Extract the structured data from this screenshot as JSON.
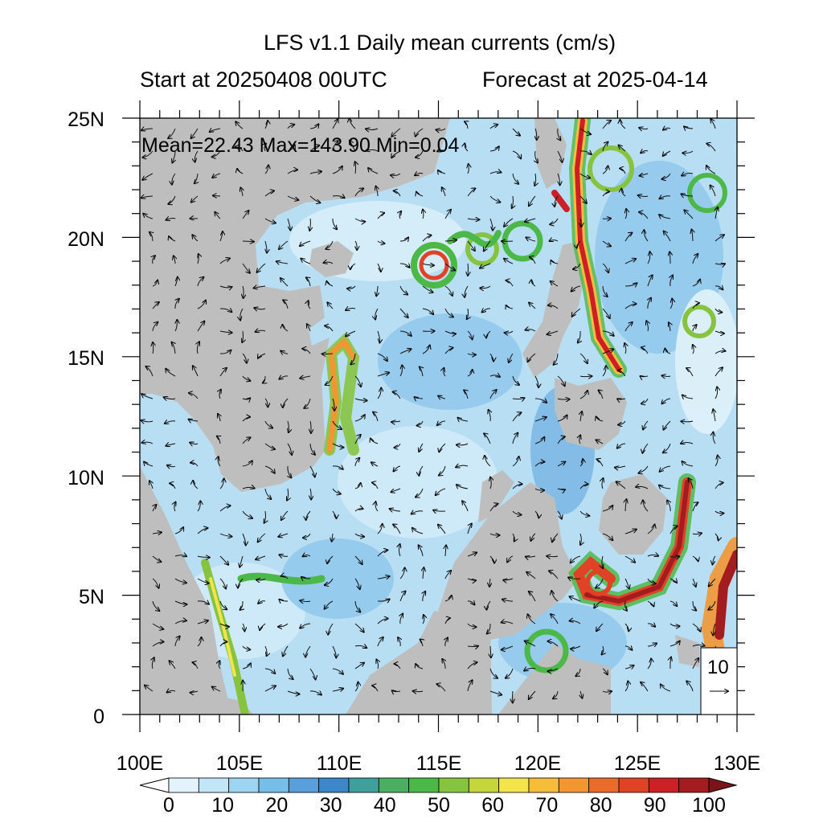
{
  "title": "LFS v1.1 Daily mean currents (cm/s)",
  "start_label": "Start at 20250408 00UTC",
  "forecast_label": "Forecast at 2025-04-14",
  "stats": "Mean=22.43  Max=143.90  Min=0.04",
  "lat_ticks": [
    "25N",
    "20N",
    "15N",
    "10N",
    "5N",
    "0"
  ],
  "lon_ticks": [
    "100E",
    "105E",
    "110E",
    "115E",
    "120E",
    "125E",
    "130E"
  ],
  "reference_vector": "10",
  "colorbar": {
    "labels": [
      "0",
      "10",
      "20",
      "30",
      "40",
      "50",
      "60",
      "70",
      "80",
      "90",
      "100"
    ],
    "colors": [
      "#e2f3fb",
      "#c3e6f6",
      "#9dd4f1",
      "#76bde8",
      "#5a9fd9",
      "#3d86c8",
      "#3f9f9a",
      "#4aae63",
      "#4cb848",
      "#86c440",
      "#c5d63d",
      "#f4e44b",
      "#f6bd3b",
      "#f29632",
      "#ea6b2a",
      "#df4225",
      "#cc1f26",
      "#a31c20"
    ]
  },
  "colors": {
    "land": "#bebebe",
    "ocean_low": "#c9e7f6",
    "ocean_mid": "#8fc8ec"
  }
}
